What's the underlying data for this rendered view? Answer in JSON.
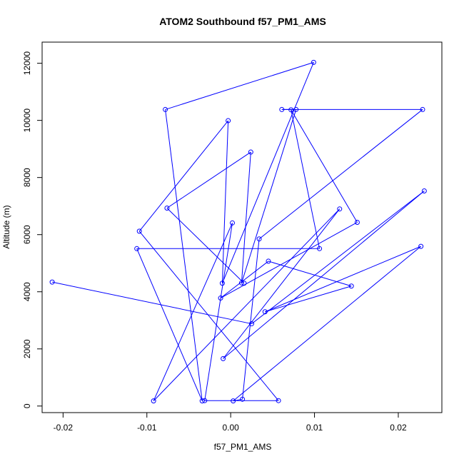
{
  "chart_data": {
    "type": "line",
    "title": "ATOM2 Southbound f57_PM1_AMS",
    "xlabel": "f57_PM1_AMS",
    "ylabel": "Altitude (m)",
    "xlim": [
      -0.0225,
      0.0252
    ],
    "ylim": [
      -230,
      12740
    ],
    "x_ticks": [
      -0.02,
      -0.01,
      0.0,
      0.01,
      0.02
    ],
    "x_tick_labels": [
      "-0.02",
      "-0.01",
      "0.00",
      "0.01",
      "0.02"
    ],
    "y_ticks": [
      0,
      2000,
      4000,
      6000,
      8000,
      10000,
      12000
    ],
    "y_tick_labels": [
      "0",
      "2000",
      "4000",
      "6000",
      "8000",
      "10000",
      "12000"
    ],
    "grid": false,
    "legend": false,
    "series_color": "#0000ff",
    "series": [
      {
        "points": [
          {
            "x": -0.0213,
            "y": 4340
          },
          {
            "x": 0.0025,
            "y": 2880
          },
          {
            "x": 0.0231,
            "y": 7530
          },
          {
            "x": -0.0009,
            "y": 1660
          },
          {
            "x": 0.013,
            "y": 6900
          },
          {
            "x": -0.0092,
            "y": 180
          },
          {
            "x": 0.0002,
            "y": 6410
          },
          {
            "x": -0.0031,
            "y": 190
          },
          {
            "x": 0.0057,
            "y": 190
          },
          {
            "x": -0.0109,
            "y": 6120
          },
          {
            "x": -0.0003,
            "y": 9990
          },
          {
            "x": -0.001,
            "y": 4300
          },
          {
            "x": 0.0099,
            "y": 12030
          },
          {
            "x": -0.0078,
            "y": 10380
          },
          {
            "x": -0.0034,
            "y": 180
          },
          {
            "x": -0.0112,
            "y": 5510
          },
          {
            "x": 0.0106,
            "y": 5510
          },
          {
            "x": 0.0072,
            "y": 10370
          },
          {
            "x": 0.0151,
            "y": 6430
          },
          {
            "x": -0.0012,
            "y": 3780
          },
          {
            "x": 0.0045,
            "y": 5070
          },
          {
            "x": 0.0144,
            "y": 4200
          },
          {
            "x": 0.0041,
            "y": 3300
          },
          {
            "x": 0.0227,
            "y": 5590
          },
          {
            "x": 0.0003,
            "y": 180
          },
          {
            "x": 0.0014,
            "y": 240
          },
          {
            "x": 0.0034,
            "y": 5850
          },
          {
            "x": 0.0229,
            "y": 10380
          },
          {
            "x": 0.0061,
            "y": 10380
          },
          {
            "x": 0.0078,
            "y": 10380
          },
          {
            "x": 0.0013,
            "y": 4310
          },
          {
            "x": 0.0024,
            "y": 8890
          },
          {
            "x": -0.0076,
            "y": 6930
          },
          {
            "x": 0.0016,
            "y": 4300
          }
        ]
      }
    ]
  }
}
